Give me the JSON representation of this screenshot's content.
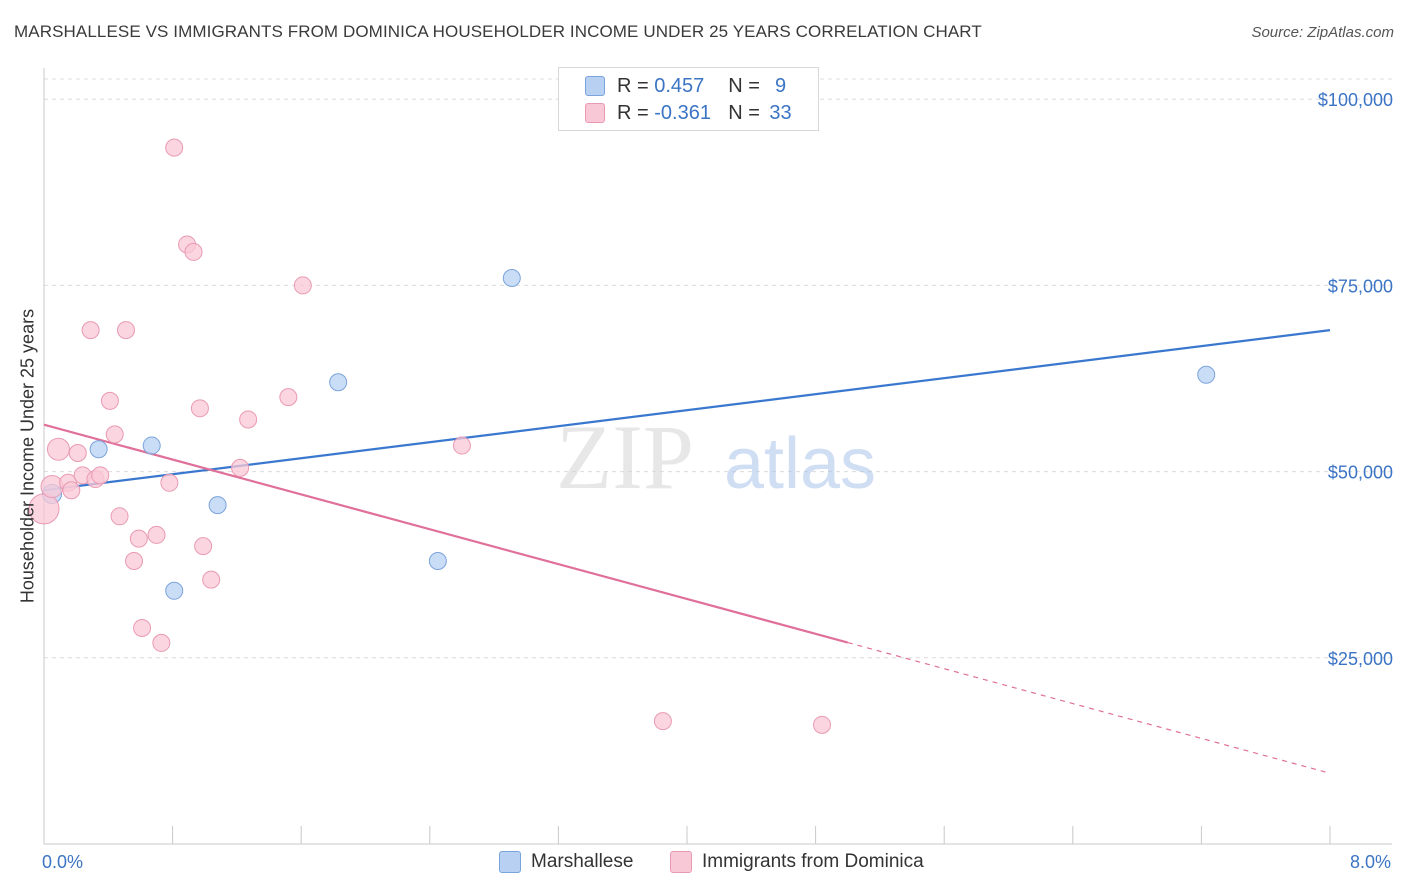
{
  "title": "MARSHALLESE VS IMMIGRANTS FROM DOMINICA HOUSEHOLDER INCOME UNDER 25 YEARS CORRELATION CHART",
  "source": "Source: ZipAtlas.com",
  "watermark": {
    "zip": "ZIP",
    "atlas": "atlas"
  },
  "legend": {
    "r_label": "R =",
    "n_label": "N =",
    "rows": [
      {
        "r": "0.457",
        "n": "9",
        "fill": "#b8d1f3",
        "stroke": "#7ba3dc"
      },
      {
        "r": "-0.361",
        "n": "33",
        "fill": "#f9c8d6",
        "stroke": "#e99ab3"
      }
    ]
  },
  "chart_data": {
    "type": "scatter",
    "xlabel": "",
    "ylabel": "Householder Income Under 25 years",
    "xlim": [
      0,
      8
    ],
    "ylim": [
      0,
      105000
    ],
    "x_tick_labels": [
      "0.0%",
      "8.0%"
    ],
    "y_ticks": [
      25000,
      50000,
      75000,
      100000
    ],
    "y_tick_labels": [
      "$25,000",
      "$50,000",
      "$75,000",
      "$100,000"
    ],
    "series": [
      {
        "name": "Marshallese",
        "color": "#7ba3dc",
        "fill": "#b8d1f3",
        "line_color": "#3a78d0",
        "points": [
          [
            0.05,
            47000
          ],
          [
            0.34,
            53000
          ],
          [
            0.67,
            53500
          ],
          [
            0.81,
            34000
          ],
          [
            1.08,
            45500
          ],
          [
            1.83,
            62000
          ],
          [
            2.45,
            38000
          ],
          [
            2.91,
            76000
          ],
          [
            7.23,
            63000
          ]
        ],
        "trend": {
          "x": [
            0.0,
            8.0
          ],
          "y": [
            47500,
            69000
          ],
          "dash_from": null
        }
      },
      {
        "name": "Immigrants from Dominica",
        "color": "#e99ab3",
        "fill": "#f9c8d6",
        "line_color": "#e0709a",
        "points": [
          [
            0.0,
            45000
          ],
          [
            0.05,
            48000
          ],
          [
            0.09,
            53000
          ],
          [
            0.15,
            48500
          ],
          [
            0.17,
            47500
          ],
          [
            0.21,
            52500
          ],
          [
            0.24,
            49500
          ],
          [
            0.29,
            69000
          ],
          [
            0.32,
            49000
          ],
          [
            0.35,
            49500
          ],
          [
            0.41,
            59500
          ],
          [
            0.44,
            55000
          ],
          [
            0.47,
            44000
          ],
          [
            0.51,
            69000
          ],
          [
            0.56,
            38000
          ],
          [
            0.59,
            41000
          ],
          [
            0.61,
            29000
          ],
          [
            0.7,
            41500
          ],
          [
            0.73,
            27000
          ],
          [
            0.78,
            48500
          ],
          [
            0.81,
            93500
          ],
          [
            0.89,
            80500
          ],
          [
            0.93,
            79500
          ],
          [
            0.97,
            58500
          ],
          [
            0.99,
            40000
          ],
          [
            1.04,
            35500
          ],
          [
            1.22,
            50500
          ],
          [
            1.27,
            57000
          ],
          [
            1.52,
            60000
          ],
          [
            1.61,
            75000
          ],
          [
            2.6,
            53500
          ],
          [
            3.85,
            16500
          ],
          [
            4.84,
            16000
          ]
        ],
        "trend": {
          "x": [
            0.0,
            8.0
          ],
          "y": [
            56300,
            9500
          ],
          "dash_from": 5.0
        }
      }
    ],
    "grid": true,
    "legend_position": "top-center"
  }
}
